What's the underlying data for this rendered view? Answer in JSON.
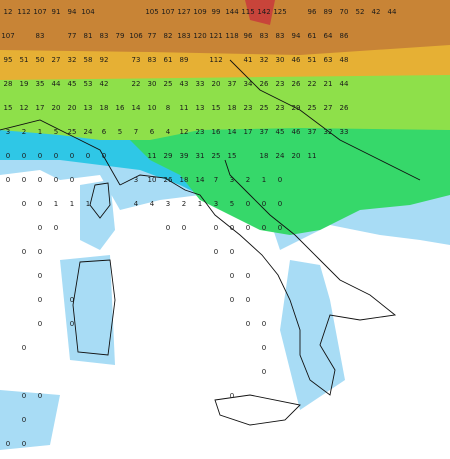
{
  "map": {
    "grid": [
      [
        12,
        112,
        107,
        91,
        94,
        104,
        null,
        null,
        null,
        105,
        107,
        127,
        109,
        99,
        144,
        115,
        142,
        125,
        null,
        96,
        89,
        70,
        52,
        42,
        44,
        null,
        null,
        null
      ],
      [
        107,
        null,
        83,
        null,
        77,
        81,
        83,
        79,
        106,
        77,
        82,
        183,
        120,
        121,
        118,
        96,
        83,
        83,
        94,
        61,
        64,
        86,
        null,
        null,
        null,
        null,
        null,
        null
      ],
      [
        95,
        51,
        50,
        27,
        32,
        58,
        92,
        null,
        73,
        83,
        61,
        89,
        null,
        112,
        null,
        41,
        32,
        30,
        46,
        51,
        63,
        48,
        null,
        null,
        null,
        null,
        null,
        null
      ],
      [
        28,
        19,
        35,
        44,
        45,
        53,
        42,
        null,
        22,
        30,
        25,
        43,
        33,
        20,
        37,
        34,
        26,
        23,
        26,
        22,
        21,
        44,
        null,
        null,
        null,
        null,
        null,
        null
      ],
      [
        15,
        12,
        17,
        20,
        20,
        13,
        18,
        16,
        14,
        10,
        8,
        11,
        13,
        15,
        18,
        23,
        25,
        23,
        29,
        25,
        27,
        26,
        null,
        null,
        null,
        null,
        null,
        null
      ],
      [
        3,
        2,
        1,
        5,
        25,
        24,
        6,
        5,
        7,
        6,
        4,
        12,
        23,
        16,
        14,
        17,
        37,
        45,
        46,
        37,
        32,
        33,
        null,
        null,
        null,
        null,
        null,
        null
      ],
      [
        0,
        0,
        0,
        0,
        0,
        0,
        0,
        null,
        null,
        11,
        29,
        39,
        31,
        25,
        15,
        null,
        18,
        24,
        20,
        11,
        null,
        null,
        null,
        null,
        null,
        null,
        null,
        null
      ],
      [
        0,
        0,
        0,
        0,
        0,
        null,
        null,
        null,
        3,
        10,
        26,
        18,
        14,
        7,
        3,
        2,
        1,
        0,
        null,
        null,
        null,
        null,
        null,
        null,
        null,
        null,
        null,
        null
      ],
      [
        null,
        0,
        0,
        1,
        1,
        1,
        null,
        null,
        4,
        4,
        3,
        2,
        1,
        3,
        5,
        0,
        0,
        0,
        null,
        null,
        null,
        null,
        null,
        null,
        null,
        null,
        null,
        null
      ],
      [
        null,
        null,
        0,
        0,
        null,
        null,
        null,
        null,
        null,
        null,
        0,
        0,
        null,
        0,
        0,
        0,
        0,
        0,
        null,
        null,
        null,
        null,
        null,
        null,
        null,
        null,
        null,
        null
      ],
      [
        null,
        0,
        0,
        null,
        null,
        null,
        null,
        null,
        null,
        null,
        null,
        null,
        null,
        0,
        0,
        null,
        null,
        null,
        null,
        null,
        null,
        null,
        null,
        null,
        null,
        null,
        null,
        null
      ],
      [
        null,
        null,
        0,
        null,
        null,
        null,
        null,
        null,
        null,
        null,
        null,
        null,
        null,
        null,
        0,
        0,
        null,
        null,
        null,
        null,
        null,
        null,
        null,
        null,
        null,
        null,
        null,
        null
      ],
      [
        null,
        null,
        0,
        null,
        0,
        null,
        null,
        null,
        null,
        null,
        null,
        null,
        null,
        null,
        0,
        0,
        null,
        null,
        null,
        null,
        null,
        null,
        null,
        null,
        null,
        null,
        null,
        null
      ],
      [
        null,
        null,
        0,
        null,
        0,
        null,
        null,
        null,
        null,
        null,
        null,
        null,
        null,
        null,
        null,
        0,
        0,
        null,
        null,
        null,
        null,
        null,
        null,
        null,
        null,
        null,
        null,
        null
      ],
      [
        null,
        0,
        null,
        null,
        null,
        null,
        null,
        null,
        null,
        null,
        null,
        null,
        null,
        null,
        null,
        null,
        0,
        null,
        null,
        null,
        null,
        null,
        null,
        null,
        null,
        null,
        null,
        null
      ],
      [
        null,
        null,
        null,
        null,
        null,
        null,
        null,
        null,
        null,
        null,
        null,
        null,
        null,
        null,
        null,
        null,
        0,
        null,
        null,
        null,
        null,
        null,
        null,
        null,
        null,
        null,
        null,
        null
      ],
      [
        null,
        0,
        0,
        null,
        null,
        null,
        null,
        null,
        null,
        null,
        null,
        null,
        null,
        null,
        0,
        null,
        null,
        null,
        null,
        null,
        null,
        null,
        null,
        null,
        null,
        null,
        null,
        null
      ],
      [
        null,
        0,
        null,
        null,
        null,
        null,
        null,
        null,
        null,
        null,
        null,
        null,
        null,
        null,
        null,
        null,
        null,
        null,
        null,
        null,
        null,
        null,
        null,
        null,
        null,
        null,
        null,
        null
      ],
      [
        0,
        0,
        null,
        null,
        null,
        null,
        null,
        null,
        null,
        null,
        null,
        null,
        null,
        null,
        null,
        null,
        null,
        null,
        null,
        null,
        null,
        null,
        null,
        null,
        null,
        null,
        null,
        null
      ]
    ]
  }
}
